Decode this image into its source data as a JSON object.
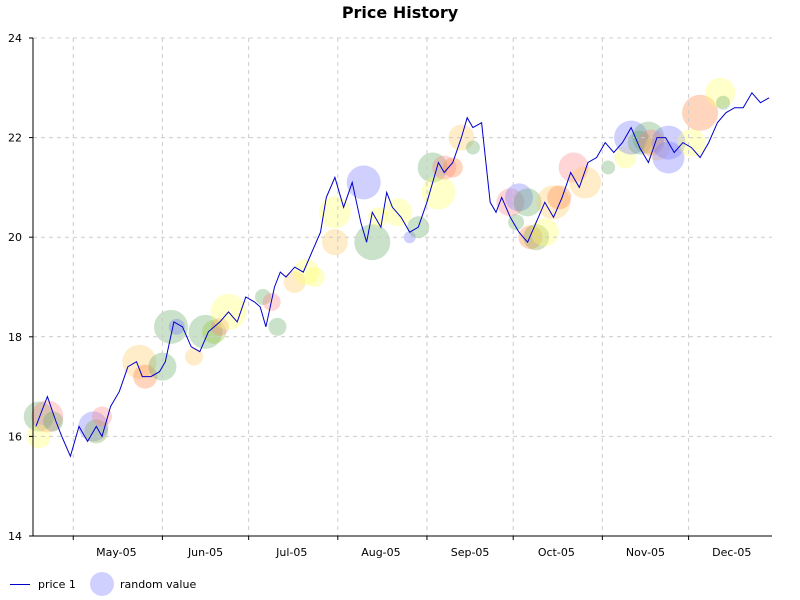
{
  "chart_data": {
    "type": "line",
    "title": "Price History",
    "xlabel": "",
    "ylabel": "",
    "ylim": [
      14,
      24
    ],
    "yticks": [
      14,
      16,
      18,
      20,
      22,
      24
    ],
    "xticks": [
      "May-05",
      "Jun-05",
      "Jul-05",
      "Aug-05",
      "Sep-05",
      "Oct-05",
      "Nov-05",
      "Dec-05"
    ],
    "grid": true,
    "legend_position": "bottom-left",
    "legend": [
      {
        "label": "price 1",
        "kind": "line",
        "color": "#0000cc"
      },
      {
        "label": "random value",
        "kind": "bubble",
        "color": "#7777ff"
      }
    ],
    "series": [
      {
        "name": "price 1",
        "color": "#0000cc",
        "x": [
          "2005-04-18",
          "2005-04-20",
          "2005-04-22",
          "2005-04-25",
          "2005-04-27",
          "2005-04-30",
          "2005-05-03",
          "2005-05-06",
          "2005-05-09",
          "2005-05-11",
          "2005-05-14",
          "2005-05-17",
          "2005-05-20",
          "2005-05-23",
          "2005-05-25",
          "2005-05-28",
          "2005-05-31",
          "2005-06-02",
          "2005-06-05",
          "2005-06-08",
          "2005-06-11",
          "2005-06-14",
          "2005-06-17",
          "2005-06-19",
          "2005-06-21",
          "2005-06-24",
          "2005-06-27",
          "2005-06-30",
          "2005-07-03",
          "2005-07-05",
          "2005-07-07",
          "2005-07-10",
          "2005-07-12",
          "2005-07-14",
          "2005-07-17",
          "2005-07-20",
          "2005-07-23",
          "2005-07-26",
          "2005-07-28",
          "2005-07-31",
          "2005-08-03",
          "2005-08-06",
          "2005-08-09",
          "2005-08-11",
          "2005-08-13",
          "2005-08-16",
          "2005-08-18",
          "2005-08-20",
          "2005-08-23",
          "2005-08-26",
          "2005-08-29",
          "2005-09-01",
          "2005-09-03",
          "2005-09-05",
          "2005-09-07",
          "2005-09-10",
          "2005-09-13",
          "2005-09-15",
          "2005-09-17",
          "2005-09-20",
          "2005-09-23",
          "2005-09-25",
          "2005-09-27",
          "2005-09-30",
          "2005-10-03",
          "2005-10-06",
          "2005-10-09",
          "2005-10-12",
          "2005-10-15",
          "2005-10-18",
          "2005-10-21",
          "2005-10-24",
          "2005-10-27",
          "2005-10-30",
          "2005-11-02",
          "2005-11-05",
          "2005-11-08",
          "2005-11-11",
          "2005-11-14",
          "2005-11-17",
          "2005-11-20",
          "2005-11-23",
          "2005-11-26",
          "2005-11-29",
          "2005-12-02",
          "2005-12-05",
          "2005-12-08",
          "2005-12-11",
          "2005-12-14",
          "2005-12-17",
          "2005-12-20",
          "2005-12-23",
          "2005-12-26",
          "2005-12-29"
        ],
        "values": [
          16.2,
          16.5,
          16.8,
          16.3,
          16.0,
          15.6,
          16.2,
          15.9,
          16.2,
          16.0,
          16.6,
          16.9,
          17.4,
          17.5,
          17.2,
          17.2,
          17.3,
          17.5,
          18.3,
          18.2,
          17.8,
          17.7,
          18.1,
          18.2,
          18.3,
          18.5,
          18.3,
          18.8,
          18.7,
          18.6,
          18.2,
          19.0,
          19.3,
          19.2,
          19.4,
          19.3,
          19.7,
          20.1,
          20.8,
          21.2,
          20.6,
          21.1,
          20.3,
          19.9,
          20.5,
          20.2,
          20.9,
          20.6,
          20.4,
          20.1,
          20.2,
          20.7,
          21.1,
          21.5,
          21.3,
          21.5,
          22.0,
          22.4,
          22.2,
          22.3,
          20.7,
          20.5,
          20.8,
          20.4,
          20.1,
          19.9,
          20.3,
          20.7,
          20.4,
          20.8,
          21.3,
          21.0,
          21.5,
          21.6,
          21.9,
          21.7,
          21.9,
          22.2,
          21.8,
          21.5,
          22.0,
          22.0,
          21.7,
          21.9,
          21.8,
          21.6,
          21.9,
          22.3,
          22.5,
          22.6,
          22.6,
          22.9,
          22.7,
          22.8
        ]
      },
      {
        "name": "random value",
        "kind": "bubble",
        "points": [
          {
            "x": "2005-04-19",
            "y": 16.4,
            "size": 15,
            "color": "#66aa66"
          },
          {
            "x": "2005-04-22",
            "y": 16.4,
            "size": 16,
            "color": "#ff8888"
          },
          {
            "x": "2005-04-19",
            "y": 16.0,
            "size": 12,
            "color": "#ffff66"
          },
          {
            "x": "2005-04-24",
            "y": 16.3,
            "size": 10,
            "color": "#66aa66"
          },
          {
            "x": "2005-05-08",
            "y": 16.2,
            "size": 15,
            "color": "#7777ff"
          },
          {
            "x": "2005-05-09",
            "y": 16.1,
            "size": 12,
            "color": "#88aa44"
          },
          {
            "x": "2005-05-11",
            "y": 16.4,
            "size": 10,
            "color": "#ff8888"
          },
          {
            "x": "2005-05-24",
            "y": 17.5,
            "size": 17,
            "color": "#ffcc66"
          },
          {
            "x": "2005-05-26",
            "y": 17.2,
            "size": 12,
            "color": "#ff8844"
          },
          {
            "x": "2005-06-01",
            "y": 17.4,
            "size": 14,
            "color": "#66aa66"
          },
          {
            "x": "2005-06-04",
            "y": 18.2,
            "size": 17,
            "color": "#66aa66"
          },
          {
            "x": "2005-06-06",
            "y": 18.2,
            "size": 8,
            "color": "#7777ff"
          },
          {
            "x": "2005-06-12",
            "y": 17.6,
            "size": 9,
            "color": "#ffcc66"
          },
          {
            "x": "2005-06-16",
            "y": 18.1,
            "size": 17,
            "color": "#66aa66"
          },
          {
            "x": "2005-06-19",
            "y": 18.1,
            "size": 12,
            "color": "#99cc33"
          },
          {
            "x": "2005-06-21",
            "y": 18.2,
            "size": 9,
            "color": "#ff8888"
          },
          {
            "x": "2005-06-24",
            "y": 18.5,
            "size": 18,
            "color": "#ffff66"
          },
          {
            "x": "2005-07-06",
            "y": 18.8,
            "size": 8,
            "color": "#66aa66"
          },
          {
            "x": "2005-07-09",
            "y": 18.7,
            "size": 9,
            "color": "#ff8888"
          },
          {
            "x": "2005-07-11",
            "y": 18.2,
            "size": 9,
            "color": "#66aa66"
          },
          {
            "x": "2005-07-17",
            "y": 19.1,
            "size": 11,
            "color": "#ffcc66"
          },
          {
            "x": "2005-07-21",
            "y": 19.3,
            "size": 13,
            "color": "#ffff66"
          },
          {
            "x": "2005-07-24",
            "y": 19.2,
            "size": 10,
            "color": "#ffff66"
          },
          {
            "x": "2005-07-31",
            "y": 20.5,
            "size": 16,
            "color": "#ffff66"
          },
          {
            "x": "2005-07-31",
            "y": 19.9,
            "size": 13,
            "color": "#ffcc66"
          },
          {
            "x": "2005-08-10",
            "y": 21.1,
            "size": 17,
            "color": "#7777ff"
          },
          {
            "x": "2005-08-13",
            "y": 19.9,
            "size": 18,
            "color": "#66aa66"
          },
          {
            "x": "2005-08-15",
            "y": 20.4,
            "size": 10,
            "color": "#ffff66"
          },
          {
            "x": "2005-08-22",
            "y": 20.5,
            "size": 14,
            "color": "#ffff66"
          },
          {
            "x": "2005-08-26",
            "y": 20.0,
            "size": 6,
            "color": "#7777ff"
          },
          {
            "x": "2005-08-29",
            "y": 20.2,
            "size": 11,
            "color": "#66aa66"
          },
          {
            "x": "2005-09-03",
            "y": 21.4,
            "size": 15,
            "color": "#66aa66"
          },
          {
            "x": "2005-09-05",
            "y": 20.9,
            "size": 17,
            "color": "#ffff66"
          },
          {
            "x": "2005-09-07",
            "y": 21.4,
            "size": 12,
            "color": "#ff8888"
          },
          {
            "x": "2005-09-10",
            "y": 21.4,
            "size": 10,
            "color": "#ff8844"
          },
          {
            "x": "2005-09-13",
            "y": 22.0,
            "size": 13,
            "color": "#ffcc66"
          },
          {
            "x": "2005-09-17",
            "y": 21.8,
            "size": 7,
            "color": "#66aa66"
          },
          {
            "x": "2005-09-30",
            "y": 20.7,
            "size": 14,
            "color": "#ff8888"
          },
          {
            "x": "2005-10-03",
            "y": 20.8,
            "size": 14,
            "color": "#7777ff"
          },
          {
            "x": "2005-10-02",
            "y": 20.3,
            "size": 8,
            "color": "#66aa66"
          },
          {
            "x": "2005-10-06",
            "y": 20.7,
            "size": 14,
            "color": "#66aa66"
          },
          {
            "x": "2005-10-07",
            "y": 20.0,
            "size": 12,
            "color": "#ff8844"
          },
          {
            "x": "2005-10-09",
            "y": 20.0,
            "size": 13,
            "color": "#88aa44"
          },
          {
            "x": "2005-10-12",
            "y": 20.1,
            "size": 14,
            "color": "#ffff66"
          },
          {
            "x": "2005-10-15",
            "y": 20.7,
            "size": 17,
            "color": "#ffcc66"
          },
          {
            "x": "2005-10-17",
            "y": 20.8,
            "size": 12,
            "color": "#ff8844"
          },
          {
            "x": "2005-10-22",
            "y": 21.4,
            "size": 15,
            "color": "#ff8888"
          },
          {
            "x": "2005-10-26",
            "y": 21.1,
            "size": 16,
            "color": "#ffcc66"
          },
          {
            "x": "2005-11-03",
            "y": 21.4,
            "size": 7,
            "color": "#66aa66"
          },
          {
            "x": "2005-11-09",
            "y": 21.6,
            "size": 11,
            "color": "#ffff66"
          },
          {
            "x": "2005-11-11",
            "y": 22.0,
            "size": 17,
            "color": "#7777ff"
          },
          {
            "x": "2005-11-14",
            "y": 21.9,
            "size": 12,
            "color": "#66aa66"
          },
          {
            "x": "2005-11-17",
            "y": 22.0,
            "size": 16,
            "color": "#66aa66"
          },
          {
            "x": "2005-11-18",
            "y": 21.9,
            "size": 13,
            "color": "#ff8888"
          },
          {
            "x": "2005-11-20",
            "y": 21.8,
            "size": 13,
            "color": "#ffcc66"
          },
          {
            "x": "2005-11-24",
            "y": 21.9,
            "size": 17,
            "color": "#7777ff"
          },
          {
            "x": "2005-11-24",
            "y": 21.6,
            "size": 16,
            "color": "#7777ff"
          },
          {
            "x": "2005-12-02",
            "y": 21.9,
            "size": 14,
            "color": "#ffff66"
          },
          {
            "x": "2005-12-05",
            "y": 22.5,
            "size": 18,
            "color": "#ff8844"
          },
          {
            "x": "2005-12-12",
            "y": 22.9,
            "size": 15,
            "color": "#ffff66"
          },
          {
            "x": "2005-12-13",
            "y": 22.7,
            "size": 7,
            "color": "#66aa66"
          }
        ]
      }
    ]
  }
}
